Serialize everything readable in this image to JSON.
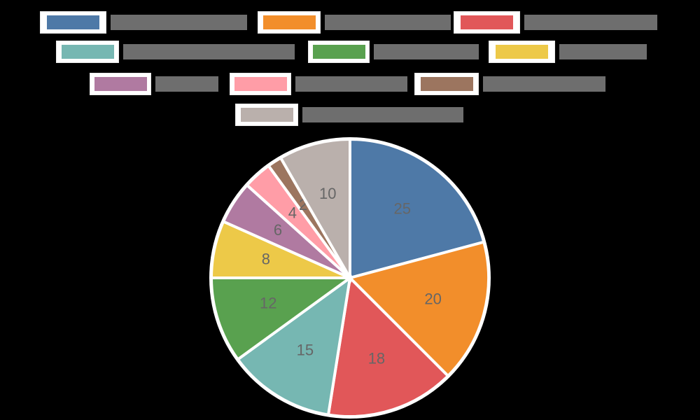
{
  "chart_data": {
    "type": "pie",
    "title": "",
    "categories": [
      "",
      "",
      "",
      "",
      "",
      "",
      "",
      "",
      "",
      ""
    ],
    "values": [
      25,
      20,
      18,
      15,
      12,
      8,
      6,
      4,
      2,
      10
    ],
    "colors": [
      "#4e79a7",
      "#f28e2b",
      "#e15759",
      "#76b7b2",
      "#59a14f",
      "#edc948",
      "#b07aa1",
      "#ff9da7",
      "#9c755f",
      "#bab0ac"
    ],
    "data_labels": [
      "25",
      "20",
      "18",
      "15",
      "12",
      "8",
      "6",
      "4",
      "2",
      "10"
    ],
    "legend_position": "top",
    "start_angle": "12 o'clock, clockwise"
  }
}
